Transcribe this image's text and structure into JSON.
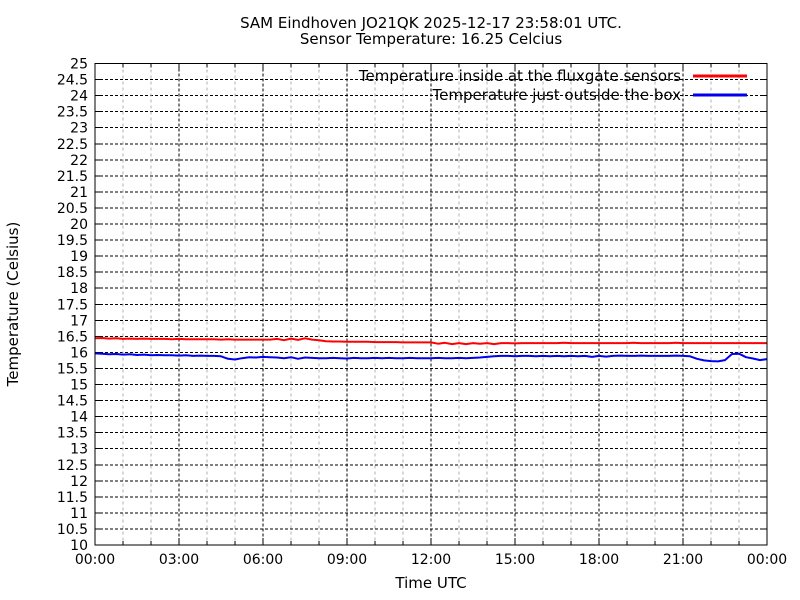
{
  "chart_data": {
    "type": "line",
    "title": "SAM Eindhoven JO21QK 2025-12-17 23:58:01 UTC.",
    "subtitle": "Sensor Temperature: 16.25 Celcius",
    "xlabel": "Time UTC",
    "ylabel": "Temperature (Celsius)",
    "xlim_hours": [
      0,
      24
    ],
    "ylim": [
      10,
      25
    ],
    "ytick_step": 0.5,
    "ytick_labels": [
      "25",
      "24.5",
      "24",
      "23.5",
      "23",
      "22.5",
      "22",
      "21.5",
      "21",
      "20.5",
      "20",
      "19.5",
      "19",
      "18.5",
      "18",
      "17.5",
      "17",
      "16.5",
      "16",
      "15.5",
      "15",
      "14.5",
      "14",
      "13.5",
      "13",
      "12.5",
      "12",
      "11.5",
      "11",
      "10.5",
      "10"
    ],
    "xtick_hours": [
      0,
      3,
      6,
      9,
      12,
      15,
      18,
      21,
      24
    ],
    "xtick_labels": [
      "00:00",
      "03:00",
      "06:00",
      "09:00",
      "12:00",
      "15:00",
      "18:00",
      "21:00",
      "00:00"
    ],
    "minor_xtick_every_hours": 1,
    "grid": true,
    "legend_position": "top-right-inside",
    "x_start_hours": 0,
    "x_step_hours": 0.25,
    "n_points": 97,
    "series": [
      {
        "name": "Temperature inside at the fluxgate sensors",
        "color": "#ff0000",
        "values": [
          16.44,
          16.45,
          16.43,
          16.44,
          16.42,
          16.43,
          16.42,
          16.43,
          16.42,
          16.42,
          16.42,
          16.41,
          16.42,
          16.41,
          16.41,
          16.41,
          16.41,
          16.41,
          16.4,
          16.41,
          16.4,
          16.4,
          16.4,
          16.4,
          16.4,
          16.4,
          16.42,
          16.38,
          16.43,
          16.39,
          16.44,
          16.4,
          16.38,
          16.35,
          16.34,
          16.34,
          16.33,
          16.33,
          16.33,
          16.33,
          16.32,
          16.32,
          16.32,
          16.32,
          16.31,
          16.31,
          16.31,
          16.31,
          16.31,
          16.27,
          16.3,
          16.26,
          16.29,
          16.26,
          16.29,
          16.27,
          16.29,
          16.26,
          16.29,
          16.29,
          16.28,
          16.29,
          16.29,
          16.29,
          16.29,
          16.29,
          16.29,
          16.3,
          16.29,
          16.29,
          16.29,
          16.29,
          16.29,
          16.29,
          16.29,
          16.29,
          16.29,
          16.3,
          16.29,
          16.29,
          16.29,
          16.29,
          16.29,
          16.3,
          16.29,
          16.29,
          16.29,
          16.29,
          16.29,
          16.29,
          16.29,
          16.29,
          16.29,
          16.29,
          16.29,
          16.29,
          16.29
        ]
      },
      {
        "name": "Temperature just outside the box",
        "color": "#0000ee",
        "values": [
          15.97,
          15.96,
          15.94,
          15.95,
          15.93,
          15.94,
          15.92,
          15.93,
          15.91,
          15.92,
          15.91,
          15.91,
          15.9,
          15.91,
          15.89,
          15.9,
          15.89,
          15.89,
          15.88,
          15.8,
          15.78,
          15.82,
          15.85,
          15.84,
          15.86,
          15.85,
          15.84,
          15.82,
          15.85,
          15.8,
          15.84,
          15.83,
          15.82,
          15.82,
          15.83,
          15.82,
          15.81,
          15.83,
          15.82,
          15.82,
          15.83,
          15.82,
          15.83,
          15.82,
          15.82,
          15.83,
          15.82,
          15.82,
          15.82,
          15.83,
          15.82,
          15.82,
          15.83,
          15.82,
          15.83,
          15.84,
          15.86,
          15.88,
          15.89,
          15.89,
          15.88,
          15.89,
          15.89,
          15.88,
          15.89,
          15.88,
          15.89,
          15.88,
          15.89,
          15.88,
          15.89,
          15.86,
          15.89,
          15.87,
          15.89,
          15.9,
          15.89,
          15.89,
          15.9,
          15.89,
          15.89,
          15.89,
          15.89,
          15.9,
          15.89,
          15.88,
          15.8,
          15.75,
          15.73,
          15.72,
          15.76,
          15.95,
          15.96,
          15.85,
          15.81,
          15.76,
          15.79
        ]
      }
    ]
  },
  "colors": {
    "background": "#ffffff",
    "border": "#000000",
    "grid_major": "#000000",
    "grid_minor": "#b0b0b0",
    "series_inside": "#ff0000",
    "series_outside": "#0000ee"
  }
}
